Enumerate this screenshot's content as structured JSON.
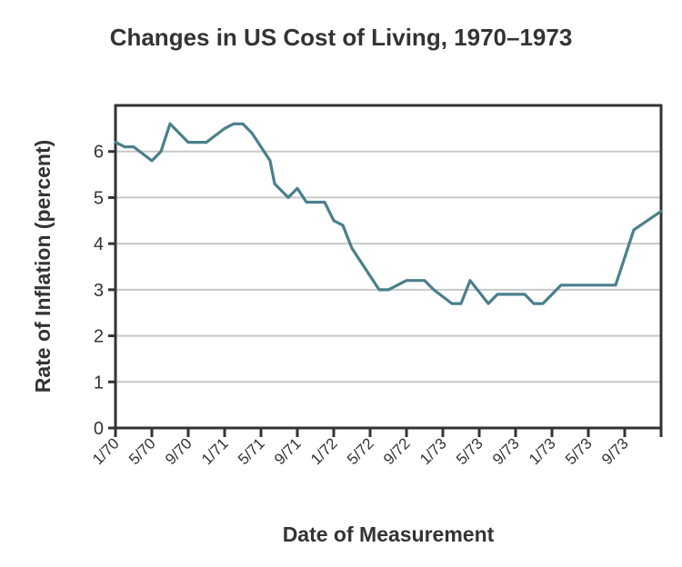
{
  "chart_data": {
    "type": "line",
    "title": "Changes in US Cost of Living, 1970–1973",
    "xlabel": "Date of Measurement",
    "ylabel": "Rate of Inflation (percent)",
    "ylim": [
      0,
      7
    ],
    "yticks": [
      0,
      1,
      2,
      3,
      4,
      5,
      6
    ],
    "xlim_months": [
      0,
      60
    ],
    "xtick_labels": [
      "1/70",
      "5/70",
      "9/70",
      "1/71",
      "5/71",
      "9/71",
      "1/72",
      "5/72",
      "9/72",
      "1/73",
      "5/73",
      "9/73",
      "1/73",
      "5/73",
      "9/73"
    ],
    "xtick_interval_months": 4,
    "grid": "horizontal",
    "legend": "none",
    "line_color": "#4a7f8c",
    "series": [
      {
        "name": "Rate of Inflation",
        "x_months_since_jan_1970": [
          0,
          1,
          2,
          4,
          5,
          6,
          8,
          10,
          12,
          13,
          14,
          15,
          16,
          17,
          17.5,
          19,
          20,
          21,
          23,
          24,
          25,
          26,
          28,
          29,
          30,
          32,
          34,
          35,
          37,
          38,
          39,
          41,
          42,
          45,
          46,
          47,
          49,
          55,
          57,
          60
        ],
        "values": [
          6.2,
          6.1,
          6.1,
          5.8,
          6.0,
          6.6,
          6.2,
          6.2,
          6.5,
          6.6,
          6.6,
          6.4,
          6.1,
          5.8,
          5.3,
          5.0,
          5.2,
          4.9,
          4.9,
          4.5,
          4.4,
          3.9,
          3.3,
          3.0,
          3.0,
          3.2,
          3.2,
          3.0,
          2.7,
          2.7,
          3.2,
          2.7,
          2.9,
          2.9,
          2.7,
          2.7,
          3.1,
          3.1,
          4.3,
          4.7
        ]
      }
    ]
  }
}
